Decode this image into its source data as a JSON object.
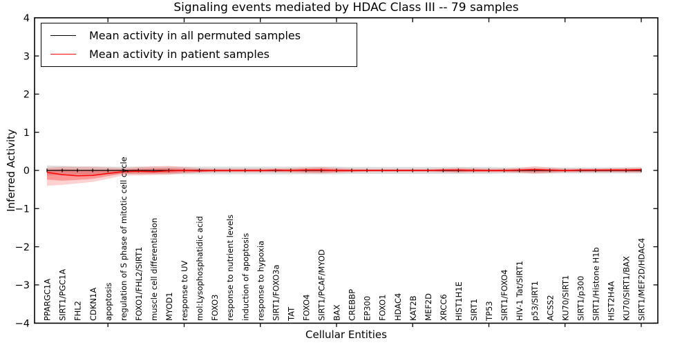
{
  "chart_data": {
    "type": "line",
    "title": "Signaling events mediated by HDAC Class III -- 79 samples",
    "xlabel": "Cellular Entities",
    "ylabel": "Inferred Activity",
    "ylim": [
      -4,
      4
    ],
    "yticks": [
      -4,
      -3,
      -2,
      -1,
      0,
      1,
      2,
      3,
      4
    ],
    "ytick_labels": [
      "−4",
      "−3",
      "−2",
      "−1",
      "0",
      "1",
      "2",
      "3",
      "4"
    ],
    "x_major_tick_every": 5,
    "grid": false,
    "legend_position": "upper left",
    "categories": [
      "PPARGC1A",
      "SIRT1/PGC1A",
      "FHL2",
      "CDKN1A",
      "apoptosis",
      "regulation of S phase of mitotic cell cycle",
      "FOXO1/FHL2/SIRT1",
      "muscle cell differentiation",
      "MYOD1",
      "response to UV",
      "mol:Lysophosphatidic acid",
      "FOXO3",
      "response to nutrient levels",
      "induction of apoptosis",
      "response to hypoxia",
      "SIRT1/FOXO3a",
      "TAT",
      "FOXO4",
      "SIRT1/PCAF/MYOD",
      "BAX",
      "CREBBP",
      "EP300",
      "FOXO1",
      "HDAC4",
      "KAT2B",
      "MEF2D",
      "XRCC6",
      "HIST1H1E",
      "SIRT1",
      "TP53",
      "SIRT1/FOXO4",
      "HIV-1 Tat/SIRT1",
      "p53/SIRT1",
      "ACSS2",
      "KU70/SIRT1",
      "SIRT1/p300",
      "SIRT1/Histone H1b",
      "HIST2H4A",
      "KU70/SIRT1/BAX",
      "SIRT1/MEF2D/HDAC4"
    ],
    "series": [
      {
        "name": "Mean activity in all permuted samples",
        "color": "#000000",
        "values": [
          0,
          0,
          0,
          0,
          0,
          0,
          0,
          0,
          0,
          0,
          0,
          0,
          0,
          0,
          0,
          0,
          0,
          0,
          0,
          0,
          0,
          0,
          0,
          0,
          0,
          0,
          0,
          0,
          0,
          0,
          0,
          0,
          0,
          0,
          0,
          0,
          0,
          0,
          0,
          0
        ],
        "band_upper": [
          0.13,
          0.12,
          0.11,
          0.11,
          0.1,
          0.1,
          0.1,
          0.1,
          0.1,
          0.1,
          0.1,
          0.1,
          0.1,
          0.1,
          0.1,
          0.1,
          0.1,
          0.1,
          0.1,
          0.1,
          0.09,
          0.09,
          0.09,
          0.09,
          0.09,
          0.09,
          0.09,
          0.09,
          0.09,
          0.09,
          0.08,
          0.08,
          0.08,
          0.08,
          0.08,
          0.08,
          0.08,
          0.08,
          0.08,
          0.08
        ],
        "band_lower": [
          -0.13,
          -0.12,
          -0.11,
          -0.11,
          -0.1,
          -0.1,
          -0.1,
          -0.1,
          -0.1,
          -0.1,
          -0.1,
          -0.1,
          -0.1,
          -0.1,
          -0.1,
          -0.1,
          -0.1,
          -0.1,
          -0.1,
          -0.1,
          -0.09,
          -0.09,
          -0.09,
          -0.09,
          -0.09,
          -0.09,
          -0.09,
          -0.09,
          -0.09,
          -0.09,
          -0.08,
          -0.08,
          -0.08,
          -0.08,
          -0.08,
          -0.08,
          -0.08,
          -0.08,
          -0.08,
          -0.08
        ]
      },
      {
        "name": "Mean activity in patient samples",
        "color": "#ff0000",
        "values": [
          -0.05,
          -0.11,
          -0.14,
          -0.13,
          -0.08,
          -0.03,
          -0.02,
          -0.03,
          -0.01,
          0.0,
          -0.01,
          0.0,
          0.0,
          0.0,
          0.0,
          0.01,
          0.0,
          0.01,
          0.01,
          0.0,
          0.0,
          0.0,
          0.0,
          0.0,
          0.0,
          0.0,
          0.01,
          0.01,
          0.0,
          0.0,
          0.0,
          0.01,
          0.02,
          0.01,
          0.0,
          0.01,
          0.01,
          0.01,
          0.01,
          0.02
        ],
        "band_upper": [
          0.07,
          0.1,
          0.09,
          0.09,
          0.08,
          0.06,
          0.09,
          0.11,
          0.12,
          0.09,
          0.06,
          0.05,
          0.05,
          0.05,
          0.05,
          0.05,
          0.06,
          0.08,
          0.09,
          0.07,
          0.05,
          0.04,
          0.04,
          0.04,
          0.04,
          0.04,
          0.05,
          0.07,
          0.06,
          0.05,
          0.05,
          0.07,
          0.11,
          0.08,
          0.05,
          0.05,
          0.05,
          0.06,
          0.07,
          0.08
        ],
        "band_lower": [
          -0.4,
          -0.38,
          -0.34,
          -0.3,
          -0.22,
          -0.13,
          -0.13,
          -0.12,
          -0.11,
          -0.08,
          -0.06,
          -0.05,
          -0.05,
          -0.05,
          -0.05,
          -0.05,
          -0.06,
          -0.07,
          -0.08,
          -0.06,
          -0.05,
          -0.04,
          -0.04,
          -0.04,
          -0.04,
          -0.04,
          -0.05,
          -0.06,
          -0.05,
          -0.05,
          -0.05,
          -0.06,
          -0.09,
          -0.07,
          -0.05,
          -0.05,
          -0.05,
          -0.05,
          -0.06,
          -0.06
        ],
        "band_inner_upper": [
          0.02,
          0.03,
          0.02,
          0.02,
          0.02,
          0.02,
          0.04,
          0.05,
          0.06,
          0.04,
          0.03,
          0.02,
          0.02,
          0.02,
          0.02,
          0.02,
          0.03,
          0.04,
          0.05,
          0.03,
          0.02,
          0.02,
          0.02,
          0.02,
          0.02,
          0.02,
          0.02,
          0.03,
          0.03,
          0.02,
          0.02,
          0.03,
          0.05,
          0.03,
          0.02,
          0.02,
          0.02,
          0.03,
          0.03,
          0.04
        ],
        "band_inner_lower": [
          -0.24,
          -0.27,
          -0.25,
          -0.22,
          -0.15,
          -0.08,
          -0.08,
          -0.08,
          -0.07,
          -0.05,
          -0.04,
          -0.03,
          -0.03,
          -0.03,
          -0.03,
          -0.03,
          -0.03,
          -0.04,
          -0.05,
          -0.04,
          -0.03,
          -0.02,
          -0.02,
          -0.02,
          -0.02,
          -0.02,
          -0.03,
          -0.04,
          -0.03,
          -0.03,
          -0.03,
          -0.04,
          -0.05,
          -0.04,
          -0.03,
          -0.03,
          -0.03,
          -0.03,
          -0.03,
          -0.04
        ]
      }
    ]
  },
  "legend": {
    "items": [
      {
        "label": "Mean activity in all permuted samples",
        "color": "#000000"
      },
      {
        "label": "Mean activity in patient samples",
        "color": "#ff0000"
      }
    ]
  }
}
